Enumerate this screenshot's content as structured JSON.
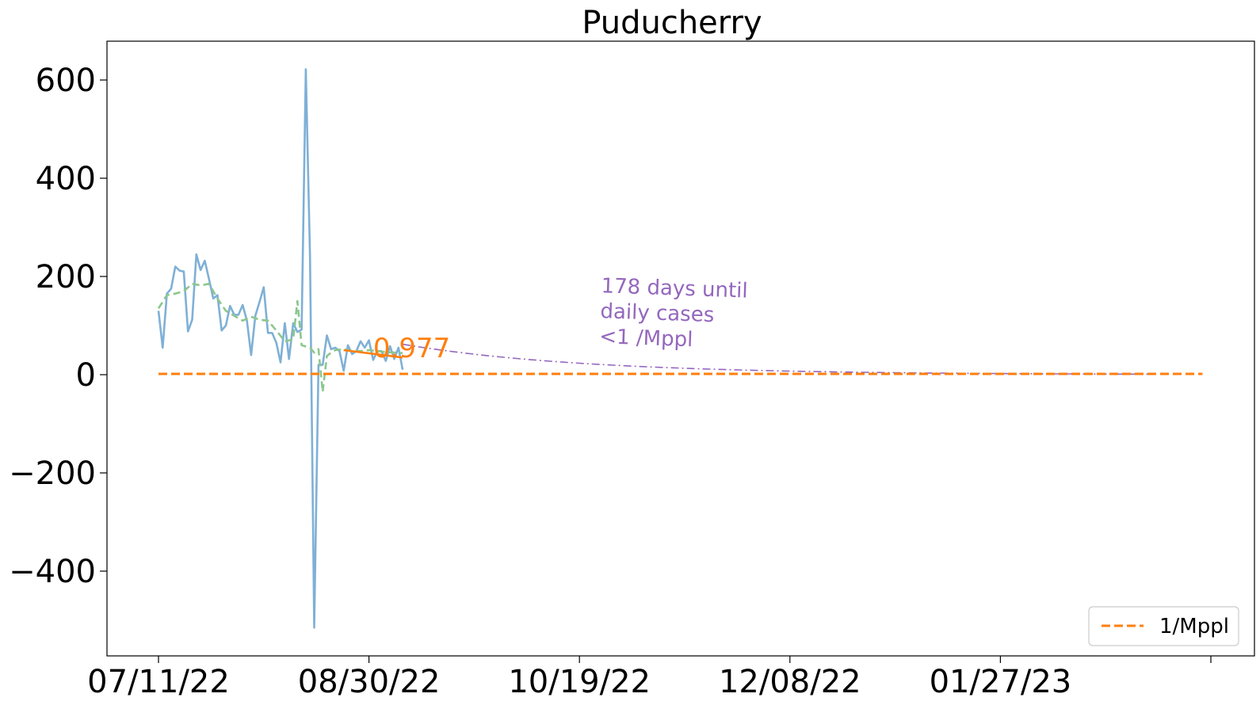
{
  "chart_data": {
    "type": "line",
    "title": "Puducherry",
    "xlabel": "",
    "ylabel": "",
    "ylim": [
      -540,
      680
    ],
    "xlim": [
      "2022-06-29",
      "2023-03-30"
    ],
    "x_ticks": [
      {
        "date": "2022-07-11",
        "label": "07/11/22"
      },
      {
        "date": "2022-08-30",
        "label": "08/30/22"
      },
      {
        "date": "2022-10-19",
        "label": "10/19/22"
      },
      {
        "date": "2022-12-08",
        "label": "12/08/22"
      },
      {
        "date": "2023-01-27",
        "label": "01/27/23"
      },
      {
        "date": "2023-03-18",
        "label": ""
      }
    ],
    "y_ticks": [
      {
        "value": 600,
        "label": "600"
      },
      {
        "value": 400,
        "label": "400"
      },
      {
        "value": 200,
        "label": "200"
      },
      {
        "value": 0,
        "label": "0"
      },
      {
        "value": -200,
        "label": "−200"
      },
      {
        "value": -400,
        "label": "−400"
      }
    ],
    "grid": false,
    "legend_position": "lower-right",
    "series": [
      {
        "role": "daily",
        "color": "#7fb0d6",
        "x": [
          "2022-07-11",
          "2022-07-12",
          "2022-07-13",
          "2022-07-14",
          "2022-07-15",
          "2022-07-16",
          "2022-07-17",
          "2022-07-18",
          "2022-07-19",
          "2022-07-20",
          "2022-07-21",
          "2022-07-22",
          "2022-07-23",
          "2022-07-24",
          "2022-07-25",
          "2022-07-26",
          "2022-07-27",
          "2022-07-28",
          "2022-07-29",
          "2022-07-30",
          "2022-07-31",
          "2022-08-01",
          "2022-08-02",
          "2022-08-03",
          "2022-08-04",
          "2022-08-05",
          "2022-08-06",
          "2022-08-07",
          "2022-08-08",
          "2022-08-09",
          "2022-08-10",
          "2022-08-11",
          "2022-08-12",
          "2022-08-13",
          "2022-08-14",
          "2022-08-15",
          "2022-08-16",
          "2022-08-17",
          "2022-08-18",
          "2022-08-19",
          "2022-08-20",
          "2022-08-21",
          "2022-08-22",
          "2022-08-23",
          "2022-08-24",
          "2022-08-25",
          "2022-08-26",
          "2022-08-27",
          "2022-08-28",
          "2022-08-29",
          "2022-08-30",
          "2022-08-31",
          "2022-09-01",
          "2022-09-02",
          "2022-09-03",
          "2022-09-04",
          "2022-09-05",
          "2022-09-06",
          "2022-09-07"
        ],
        "values": [
          130,
          55,
          165,
          175,
          220,
          212,
          210,
          88,
          112,
          245,
          213,
          232,
          195,
          155,
          162,
          90,
          100,
          140,
          122,
          122,
          142,
          110,
          40,
          120,
          148,
          178,
          85,
          85,
          65,
          25,
          105,
          32,
          105,
          87,
          92,
          622,
          240,
          -515,
          20,
          20,
          80,
          52,
          55,
          48,
          8,
          60,
          42,
          48,
          68,
          55,
          70,
          30,
          48,
          48,
          28,
          58,
          32,
          55,
          10
        ]
      },
      {
        "role": "smoothed",
        "color": "#8cc78c",
        "x": [
          "2022-07-11",
          "2022-07-13",
          "2022-07-15",
          "2022-07-17",
          "2022-07-19",
          "2022-07-21",
          "2022-07-23",
          "2022-07-25",
          "2022-07-27",
          "2022-07-29",
          "2022-07-31",
          "2022-08-02",
          "2022-08-04",
          "2022-08-06",
          "2022-08-08",
          "2022-08-10",
          "2022-08-11",
          "2022-08-12",
          "2022-08-13",
          "2022-08-14",
          "2022-08-16",
          "2022-08-17",
          "2022-08-18",
          "2022-08-19",
          "2022-08-20",
          "2022-08-21",
          "2022-08-22",
          "2022-08-24",
          "2022-08-26",
          "2022-08-28",
          "2022-08-30",
          "2022-09-01",
          "2022-09-03",
          "2022-09-05",
          "2022-09-07"
        ],
        "values": [
          135,
          162,
          165,
          170,
          185,
          182,
          185,
          155,
          130,
          120,
          110,
          118,
          112,
          110,
          90,
          68,
          70,
          72,
          150,
          60,
          55,
          45,
          52,
          -35,
          38,
          45,
          50,
          52,
          48,
          48,
          50,
          48,
          46,
          45,
          44
        ]
      },
      {
        "role": "trend-fit",
        "color": "#ff7f0e",
        "x": [
          "2022-08-24",
          "2022-09-07"
        ],
        "values": [
          50,
          35
        ]
      },
      {
        "role": "projection",
        "color": "#9467bd",
        "x_start": "2022-09-07",
        "y_start": 62,
        "daily_factor": 0.977,
        "x_end": "2023-03-04"
      },
      {
        "name": "1/Mppl",
        "role": "threshold",
        "color": "#ff7f0e",
        "x": [
          "2022-07-11",
          "2023-03-16"
        ],
        "values": [
          1.6,
          1.6
        ]
      }
    ],
    "annotations": [
      {
        "role": "rate",
        "text": "0.977",
        "color": "#ff7f0e",
        "x": "2022-08-31",
        "y": 55
      },
      {
        "role": "days-until",
        "lines": [
          "178 days until",
          "daily cases",
          "<1 /Mppl"
        ],
        "color": "#9467bd",
        "x": "2022-10-24",
        "y": 140
      }
    ],
    "legend": [
      {
        "label": "1/Mppl",
        "color": "#ff7f0e",
        "style": "dashed"
      }
    ]
  }
}
